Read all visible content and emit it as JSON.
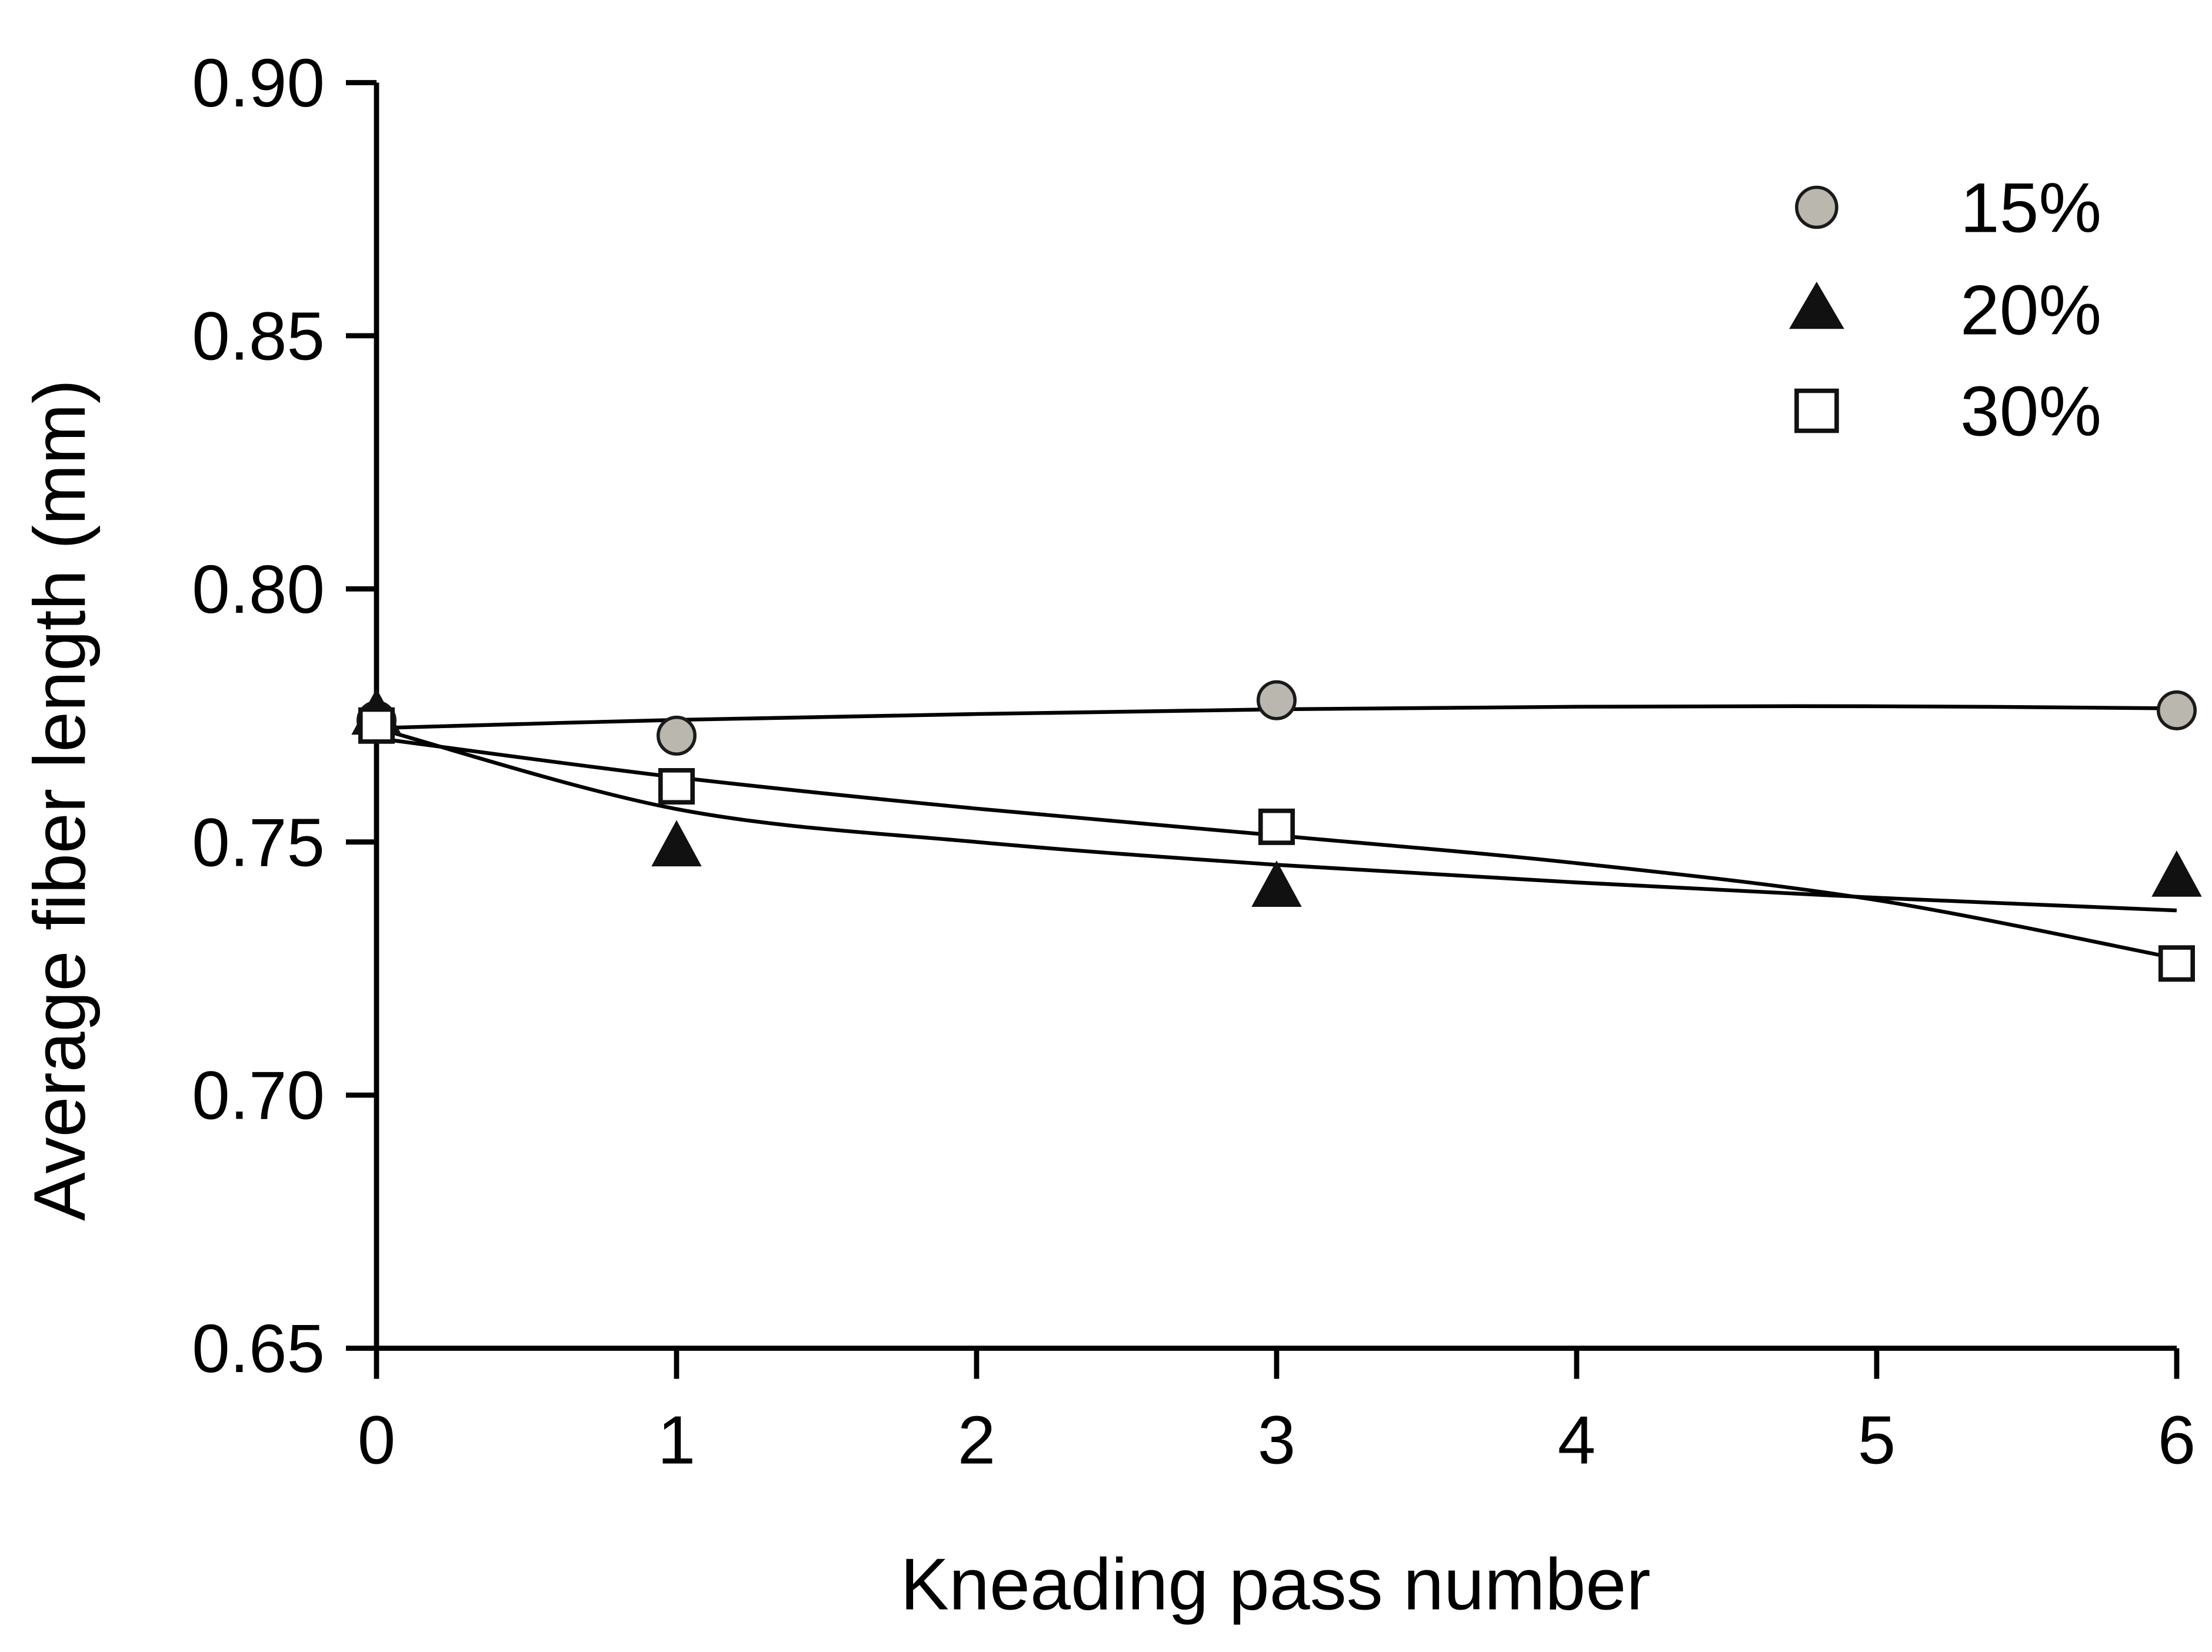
{
  "chart_data": {
    "type": "scatter",
    "xlabel": "Kneading pass number",
    "ylabel": "Average fiber length (mm)",
    "xlim": [
      0,
      6
    ],
    "ylim": [
      0.65,
      0.9
    ],
    "x_ticks": [
      0,
      1,
      2,
      3,
      4,
      5,
      6
    ],
    "x_tick_labels": [
      "0",
      "1",
      "2",
      "3",
      "4",
      "5",
      "6"
    ],
    "y_ticks": [
      0.65,
      0.7,
      0.75,
      0.8,
      0.85,
      0.9
    ],
    "y_tick_labels": [
      "0.65",
      "0.70",
      "0.75",
      "0.80",
      "0.85",
      "0.90"
    ],
    "grid": false,
    "legend_position": "top-right",
    "axis_color": "#000000",
    "background": "#ffffff",
    "x": [
      0,
      1,
      3,
      6
    ],
    "series": [
      {
        "name": "15%",
        "marker": "circle",
        "fill": "#b9b7ae",
        "stroke": "#1a1a1a",
        "values": [
          0.774,
          0.771,
          0.778,
          0.776
        ],
        "trend_x": [
          0,
          1,
          2,
          3,
          4,
          5,
          6
        ],
        "trend_y": [
          0.7725,
          0.7741,
          0.7753,
          0.7762,
          0.7767,
          0.7768,
          0.7764
        ]
      },
      {
        "name": "20%",
        "marker": "triangle",
        "fill": "#111111",
        "stroke": "#111111",
        "values": [
          0.775,
          0.749,
          0.741,
          0.743
        ],
        "trend_x": [
          0,
          1,
          2,
          3,
          4,
          5,
          6
        ],
        "trend_y": [
          0.7725,
          0.7565,
          0.75,
          0.7455,
          0.742,
          0.739,
          0.7365
        ]
      },
      {
        "name": "30%",
        "marker": "square",
        "fill": "#ffffff",
        "stroke": "#111111",
        "values": [
          0.773,
          0.761,
          0.753,
          0.726
        ],
        "trend_x": [
          0,
          1,
          2,
          3,
          4,
          5,
          6
        ],
        "trend_y": [
          0.7705,
          0.7628,
          0.7566,
          0.7513,
          0.7458,
          0.7385,
          0.727
        ]
      }
    ]
  }
}
